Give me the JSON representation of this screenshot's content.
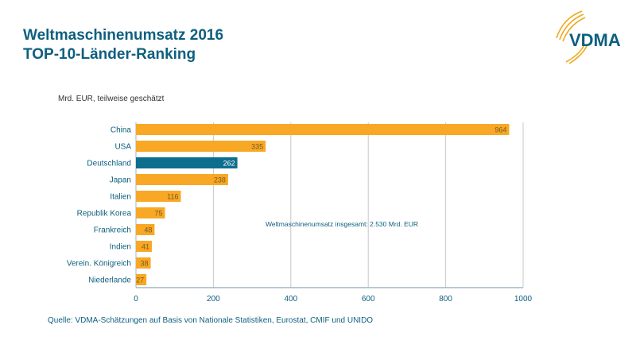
{
  "title_line1": "Weltmaschinenumsatz 2016",
  "title_line2": "TOP-10-Länder-Ranking",
  "logo_text": "VDMA",
  "source": "Quelle: VDMA-Schätzungen auf Basis von Nationale Statistiken, Eurostat, CMIF und UNIDO",
  "colors": {
    "bar": "#f8a824",
    "highlight": "#0e6e8e",
    "title": "#0e5f7f"
  },
  "chart_data": {
    "type": "bar",
    "orientation": "horizontal",
    "unit_label": "Mrd. EUR, teilweise geschätzt",
    "categories": [
      "China",
      "USA",
      "Deutschland",
      "Japan",
      "Italien",
      "Republik Korea",
      "Frankreich",
      "Indien",
      "Verein. Königreich",
      "Niederlande"
    ],
    "values": [
      964,
      335,
      262,
      238,
      116,
      75,
      48,
      41,
      38,
      27
    ],
    "highlight": "Deutschland",
    "xlim": [
      0,
      1000
    ],
    "xticks": [
      0,
      200,
      400,
      600,
      800,
      1000
    ],
    "grid": "vertical",
    "annotation": "Weltmaschinenumsatz  insgesamt: 2.530 Mrd. EUR"
  }
}
